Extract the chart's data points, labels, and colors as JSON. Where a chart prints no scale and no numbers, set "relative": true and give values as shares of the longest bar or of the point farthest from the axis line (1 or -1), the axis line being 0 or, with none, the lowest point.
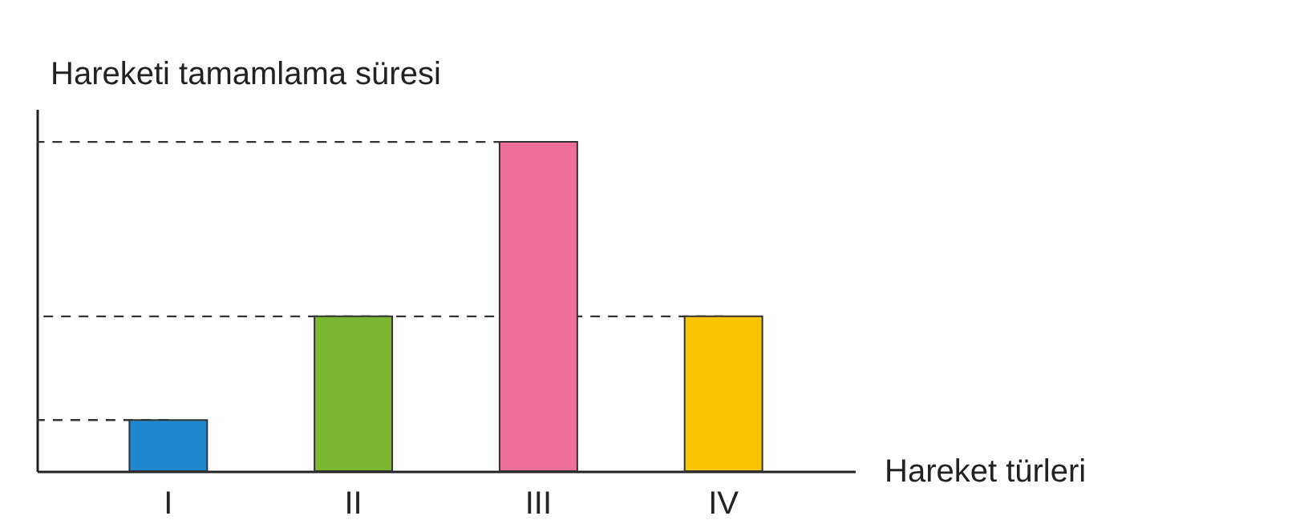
{
  "chart_data": {
    "type": "bar",
    "relative": true,
    "xlabel": "Hareket türleri",
    "ylabel": "Hareketi tamamlama süresi",
    "categories": [
      "I",
      "II",
      "III",
      "IV"
    ],
    "values": [
      0.155,
      0.47,
      1,
      0.47
    ],
    "colors": [
      "#1e88d0",
      "#7cb82f",
      "#ee6f9a",
      "#fbc400"
    ],
    "ref_lines": [
      {
        "axis": "y",
        "value": 0.155,
        "line_style": "dashed",
        "color": "#333333"
      },
      {
        "axis": "y",
        "value": 0.47,
        "line_style": "dashed",
        "color": "#333333"
      },
      {
        "axis": "y",
        "value": 1,
        "line_style": "dashed",
        "color": "#333333"
      }
    ]
  }
}
